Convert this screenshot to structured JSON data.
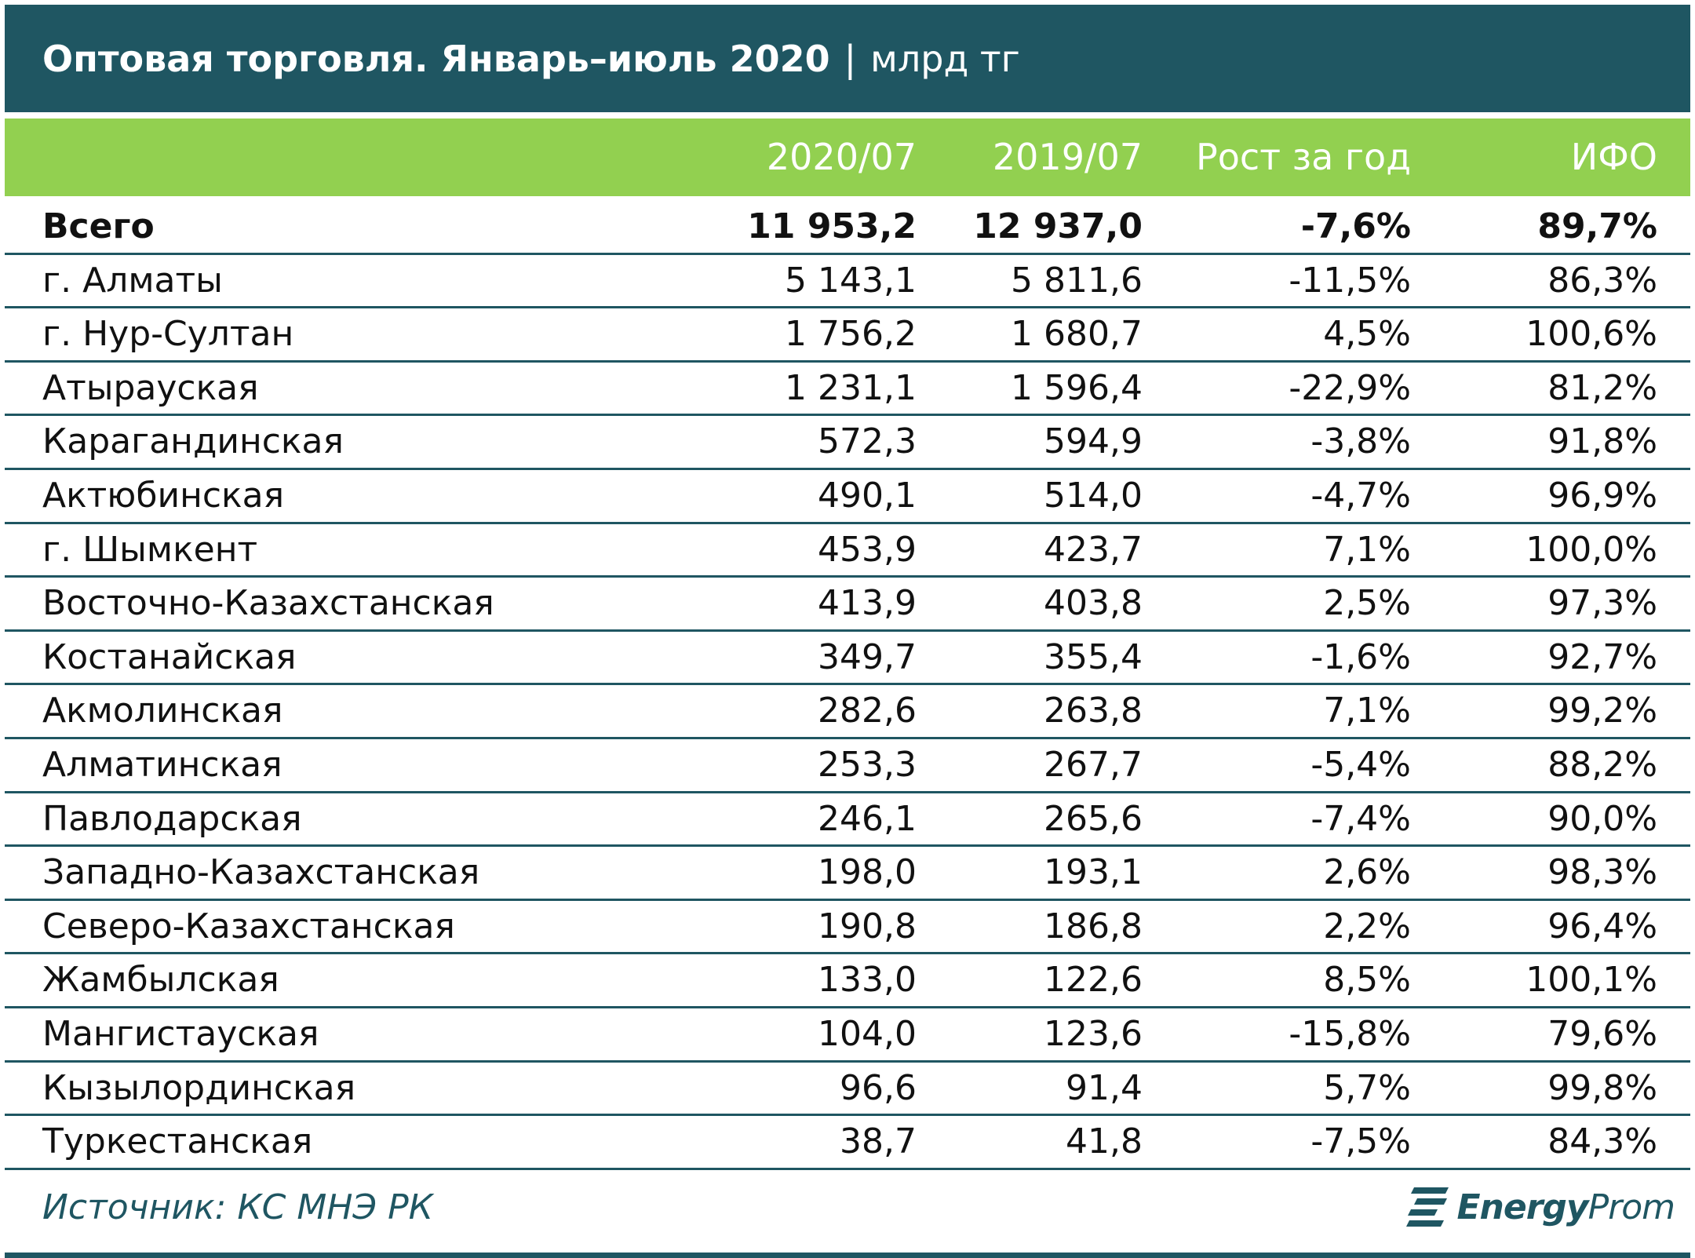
{
  "title": {
    "main": "Оптовая торговля. Январь–июль 2020",
    "separator": "|",
    "unit": "млрд тг"
  },
  "colors": {
    "title_bg": "#1f5662",
    "header_bg": "#92d050",
    "row_rule": "#1f5662"
  },
  "chart_data": {
    "type": "table",
    "columns": [
      "",
      "2020/07",
      "2019/07",
      "Рост за год",
      "ИФО"
    ],
    "rows": [
      {
        "name": "Всего",
        "v2020": "11 953,2",
        "v2019": "12 937,0",
        "growth": "-7,6%",
        "ifo": "89,7%",
        "bold": true
      },
      {
        "name": "г. Алматы",
        "v2020": "5 143,1",
        "v2019": "5 811,6",
        "growth": "-11,5%",
        "ifo": "86,3%"
      },
      {
        "name": "г. Нур-Султан",
        "v2020": "1 756,2",
        "v2019": "1 680,7",
        "growth": "4,5%",
        "ifo": "100,6%"
      },
      {
        "name": "Атырауская",
        "v2020": "1 231,1",
        "v2019": "1 596,4",
        "growth": "-22,9%",
        "ifo": "81,2%"
      },
      {
        "name": "Карагандинская",
        "v2020": "572,3",
        "v2019": "594,9",
        "growth": "-3,8%",
        "ifo": "91,8%"
      },
      {
        "name": "Актюбинская",
        "v2020": "490,1",
        "v2019": "514,0",
        "growth": "-4,7%",
        "ifo": "96,9%"
      },
      {
        "name": "г. Шымкент",
        "v2020": "453,9",
        "v2019": "423,7",
        "growth": "7,1%",
        "ifo": "100,0%"
      },
      {
        "name": "Восточно-Казахстанская",
        "v2020": "413,9",
        "v2019": "403,8",
        "growth": "2,5%",
        "ifo": "97,3%"
      },
      {
        "name": "Костанайская",
        "v2020": "349,7",
        "v2019": "355,4",
        "growth": "-1,6%",
        "ifo": "92,7%"
      },
      {
        "name": "Акмолинская",
        "v2020": "282,6",
        "v2019": "263,8",
        "growth": "7,1%",
        "ifo": "99,2%"
      },
      {
        "name": "Алматинская",
        "v2020": "253,3",
        "v2019": "267,7",
        "growth": "-5,4%",
        "ifo": "88,2%"
      },
      {
        "name": "Павлодарская",
        "v2020": "246,1",
        "v2019": "265,6",
        "growth": "-7,4%",
        "ifo": "90,0%"
      },
      {
        "name": "Западно-Казахстанская",
        "v2020": "198,0",
        "v2019": "193,1",
        "growth": "2,6%",
        "ifo": "98,3%"
      },
      {
        "name": "Северо-Казахстанская",
        "v2020": "190,8",
        "v2019": "186,8",
        "growth": "2,2%",
        "ifo": "96,4%"
      },
      {
        "name": "Жамбылская",
        "v2020": "133,0",
        "v2019": "122,6",
        "growth": "8,5%",
        "ifo": "100,1%"
      },
      {
        "name": "Мангистауская",
        "v2020": "104,0",
        "v2019": "123,6",
        "growth": "-15,8%",
        "ifo": "79,6%"
      },
      {
        "name": "Кызылординская",
        "v2020": "96,6",
        "v2019": "91,4",
        "growth": "5,7%",
        "ifo": "99,8%"
      },
      {
        "name": "Туркестанская",
        "v2020": "38,7",
        "v2019": "41,8",
        "growth": "-7,5%",
        "ifo": "84,3%"
      }
    ]
  },
  "footer": {
    "source": "Источник: КС МНЭ РК",
    "logo_bold": "Energy",
    "logo_rest": "Prom",
    "logo_icon": "energyprom-logo-icon"
  }
}
